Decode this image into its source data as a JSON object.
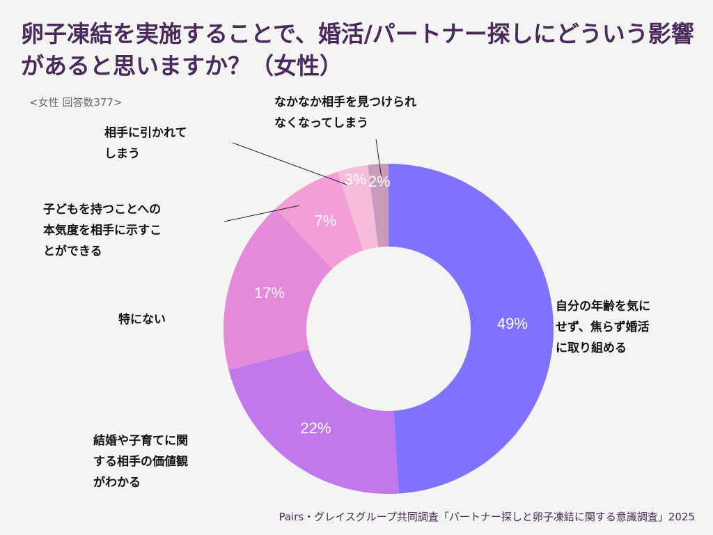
{
  "title": "卵子凍結を実施することで、婚活/パートナー探しにどういう影響があると思いますか？（女性）",
  "subtitle": "<女性 回答数377>",
  "source": "Pairs・グレイスグループ共同調査「パートナー探しと卵子凍結に関する意識調査」2025",
  "chart_data": {
    "type": "pie",
    "donut": true,
    "title": "卵子凍結を実施することで、婚活/パートナー探しにどういう影響があると思いますか？（女性）",
    "n": 377,
    "unit": "%",
    "slices": [
      {
        "label": "自分の年齢を気にせず、焦らず婚活に取り組める",
        "value": 49,
        "display": "49%",
        "color": "#7e72ff"
      },
      {
        "label": "結婚や子育てに関する相手の価値観がわかる",
        "value": 22,
        "display": "22%",
        "color": "#bf79ea"
      },
      {
        "label": "特にない",
        "value": 17,
        "display": "17%",
        "color": "#e48ad8"
      },
      {
        "label": "子どもを持つことへの本気度を相手に示すことができる",
        "value": 7,
        "display": "7%",
        "color": "#f49ed8"
      },
      {
        "label": "相手に引かれてしまう",
        "value": 3,
        "display": "3%",
        "color": "#f7bcd8"
      },
      {
        "label": "なかなか相手を見つけられなくなってしまう",
        "value": 2,
        "display": "2%",
        "color": "#c99bbb"
      }
    ]
  },
  "labels": {
    "l0": [
      "自分の年齢を気に",
      "せず、焦らず婚活",
      "に取り組める"
    ],
    "l1": [
      "結婚や子育てに関",
      "する相手の価値観",
      "がわかる"
    ],
    "l2": [
      "特にない"
    ],
    "l3": [
      "子どもを持つことへの",
      "本気度を相手に示すこ",
      "とができる"
    ],
    "l4": [
      "相手に引かれて",
      "しまう"
    ],
    "l5": [
      "なかなか相手を見つけられ",
      "なくなってしまう"
    ]
  }
}
